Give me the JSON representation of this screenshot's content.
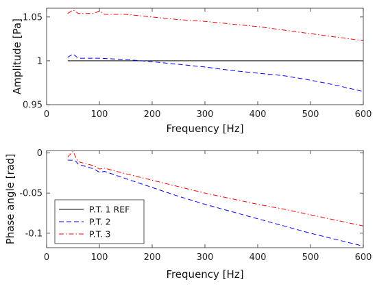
{
  "chart_data": [
    {
      "type": "line",
      "title": "",
      "xlabel": "Frequency [Hz]",
      "ylabel": "Amplitude [Pa]",
      "xlim": [
        0,
        600
      ],
      "ylim": [
        0.95,
        1.06
      ],
      "xticks": [
        0,
        100,
        200,
        300,
        400,
        500,
        600
      ],
      "yticks": [
        0.95,
        1,
        1.05
      ],
      "yticklabels": [
        "0.95",
        "1",
        "1.05"
      ],
      "grid": false,
      "series": [
        {
          "name": "P.T. 1 REF",
          "color": "#000000",
          "dash": "solid",
          "x": [
            40,
            600
          ],
          "y": [
            1.0,
            1.0
          ]
        },
        {
          "name": "P.T. 2",
          "color": "#0000ff",
          "dash": "dashed",
          "x": [
            40,
            50,
            60,
            100,
            150,
            200,
            250,
            300,
            350,
            400,
            450,
            500,
            550,
            600
          ],
          "y": [
            1.004,
            1.008,
            1.003,
            1.003,
            1.0015,
            0.999,
            0.996,
            0.993,
            0.989,
            0.986,
            0.983,
            0.978,
            0.972,
            0.965
          ]
        },
        {
          "name": "P.T. 3",
          "color": "#ff0000",
          "dash": "dashdot",
          "x": [
            40,
            50,
            60,
            90,
            100,
            110,
            150,
            200,
            250,
            300,
            350,
            400,
            450,
            500,
            550,
            600
          ],
          "y": [
            1.054,
            1.058,
            1.054,
            1.054,
            1.057,
            1.053,
            1.053,
            1.05,
            1.047,
            1.045,
            1.042,
            1.039,
            1.035,
            1.031,
            1.027,
            1.023
          ]
        }
      ]
    },
    {
      "type": "line",
      "title": "",
      "xlabel": "Frequency [Hz]",
      "ylabel": "Phase angle [rad]",
      "xlim": [
        0,
        600
      ],
      "ylim": [
        -0.118,
        0.003
      ],
      "xticks": [
        0,
        100,
        200,
        300,
        400,
        500,
        600
      ],
      "yticks": [
        0,
        -0.05,
        -0.1
      ],
      "yticklabels": [
        "0",
        "-0.05",
        "-0.1"
      ],
      "grid": false,
      "legend": "bottom-left",
      "series": [
        {
          "name": "P.T. 1 REF",
          "color": "#000000",
          "dash": "solid",
          "x": [],
          "y": []
        },
        {
          "name": "P.T. 2",
          "color": "#0000ff",
          "dash": "dashed",
          "x": [
            40,
            50,
            55,
            60,
            90,
            100,
            110,
            150,
            200,
            250,
            300,
            350,
            400,
            450,
            500,
            550,
            600
          ],
          "y": [
            -0.009,
            -0.009,
            -0.01,
            -0.014,
            -0.02,
            -0.024,
            -0.023,
            -0.032,
            -0.043,
            -0.054,
            -0.064,
            -0.073,
            -0.082,
            -0.091,
            -0.1,
            -0.108,
            -0.116
          ]
        },
        {
          "name": "P.T. 3",
          "color": "#ff0000",
          "dash": "dashdot",
          "x": [
            40,
            50,
            55,
            60,
            90,
            100,
            110,
            150,
            200,
            250,
            300,
            350,
            400,
            450,
            500,
            550,
            600
          ],
          "y": [
            -0.005,
            0.002,
            -0.005,
            -0.011,
            -0.016,
            -0.02,
            -0.019,
            -0.026,
            -0.034,
            -0.042,
            -0.05,
            -0.057,
            -0.064,
            -0.07,
            -0.077,
            -0.084,
            -0.091
          ]
        }
      ]
    }
  ]
}
